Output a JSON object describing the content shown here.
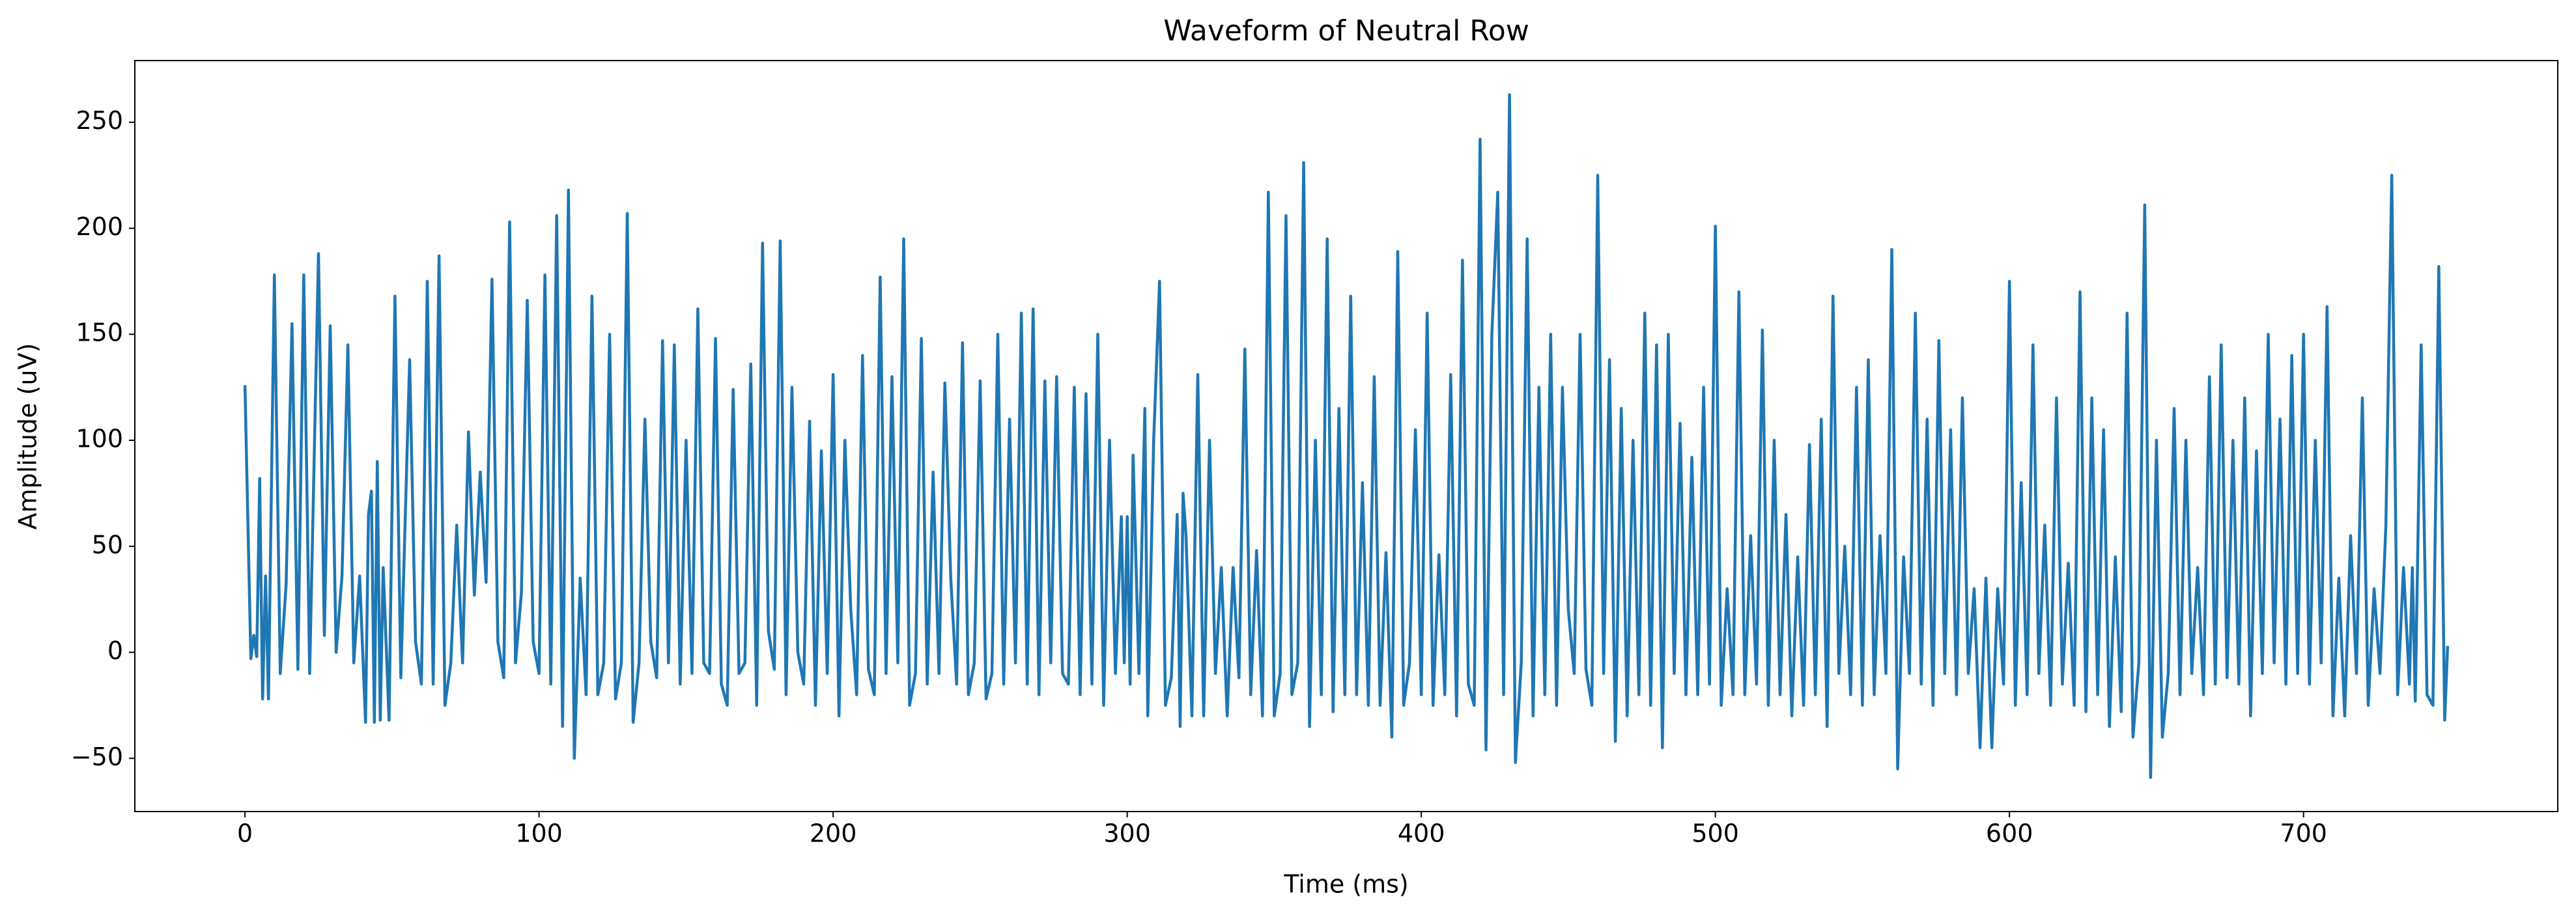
{
  "chart_data": {
    "type": "line",
    "title": "Waveform of Neutral Row",
    "xlabel": "Time (ms)",
    "ylabel": "Amplitude (uV)",
    "x": [
      0,
      2,
      3,
      4,
      5,
      6,
      7,
      8,
      10,
      12,
      14,
      16,
      18,
      20,
      22,
      25,
      27,
      29,
      31,
      33,
      35,
      37,
      39,
      41,
      42,
      43,
      44,
      45,
      46,
      47,
      49,
      51,
      53,
      56,
      58,
      60,
      62,
      64,
      66,
      68,
      70,
      72,
      74,
      76,
      78,
      80,
      82,
      84,
      86,
      88,
      90,
      92,
      94,
      96,
      98,
      100,
      102,
      104,
      106,
      108,
      110,
      112,
      114,
      116,
      118,
      120,
      122,
      124,
      126,
      128,
      130,
      132,
      134,
      136,
      138,
      140,
      142,
      144,
      146,
      148,
      150,
      152,
      154,
      156,
      158,
      160,
      162,
      164,
      166,
      168,
      170,
      172,
      174,
      176,
      178,
      180,
      182,
      184,
      186,
      188,
      190,
      192,
      194,
      196,
      198,
      200,
      202,
      204,
      206,
      208,
      210,
      212,
      214,
      216,
      218,
      220,
      222,
      224,
      226,
      228,
      230,
      232,
      234,
      236,
      238,
      240,
      242,
      244,
      246,
      248,
      250,
      252,
      254,
      256,
      258,
      260,
      262,
      264,
      266,
      268,
      270,
      272,
      274,
      276,
      278,
      280,
      282,
      284,
      286,
      288,
      290,
      292,
      294,
      296,
      298,
      299,
      300,
      301,
      302,
      304,
      306,
      307,
      309,
      311,
      313,
      315,
      317,
      318,
      319,
      320,
      322,
      324,
      326,
      328,
      330,
      332,
      334,
      336,
      338,
      340,
      342,
      344,
      346,
      348,
      350,
      352,
      354,
      356,
      358,
      360,
      362,
      364,
      366,
      368,
      370,
      372,
      374,
      376,
      378,
      380,
      382,
      384,
      386,
      388,
      390,
      392,
      394,
      396,
      398,
      400,
      402,
      404,
      406,
      408,
      410,
      412,
      414,
      416,
      418,
      420,
      422,
      424,
      426,
      428,
      430,
      432,
      434,
      436,
      438,
      440,
      442,
      444,
      446,
      448,
      450,
      452,
      454,
      456,
      458,
      460,
      462,
      464,
      466,
      468,
      470,
      472,
      474,
      476,
      478,
      480,
      482,
      484,
      486,
      488,
      490,
      492,
      494,
      496,
      498,
      500,
      502,
      504,
      506,
      508,
      510,
      512,
      514,
      516,
      518,
      520,
      522,
      524,
      526,
      528,
      530,
      532,
      534,
      536,
      538,
      540,
      542,
      544,
      546,
      548,
      550,
      552,
      554,
      556,
      558,
      560,
      562,
      564,
      566,
      568,
      570,
      572,
      574,
      576,
      578,
      580,
      582,
      584,
      586,
      588,
      590,
      592,
      594,
      596,
      598,
      600,
      602,
      604,
      606,
      608,
      610,
      612,
      614,
      616,
      618,
      620,
      622,
      624,
      626,
      628,
      630,
      632,
      634,
      636,
      638,
      640,
      642,
      644,
      646,
      648,
      650,
      652,
      654,
      656,
      658,
      660,
      662,
      664,
      666,
      668,
      670,
      672,
      674,
      676,
      678,
      680,
      682,
      684,
      686,
      688,
      690,
      692,
      694,
      696,
      698,
      700,
      702,
      704,
      706,
      708,
      710,
      712,
      714,
      716,
      718,
      720,
      722,
      724,
      726,
      728,
      730,
      732,
      734,
      736,
      737,
      738,
      740,
      742,
      744,
      746,
      748,
      749
    ],
    "series": [
      {
        "name": "Neutral Row",
        "color": "#1f77b4",
        "values": [
          126,
          -3,
          8,
          -2,
          82,
          -22,
          36,
          -22,
          178,
          -10,
          32,
          155,
          -8,
          178,
          -10,
          188,
          8,
          154,
          0,
          36,
          145,
          -5,
          36,
          -33,
          65,
          76,
          -33,
          90,
          -32,
          40,
          -32,
          168,
          -12,
          138,
          5,
          -15,
          175,
          -15,
          187,
          -25,
          -5,
          60,
          -5,
          104,
          27,
          85,
          33,
          176,
          5,
          -12,
          203,
          -5,
          28,
          166,
          5,
          -10,
          178,
          -15,
          206,
          -35,
          218,
          -50,
          35,
          -20,
          168,
          -20,
          -5,
          150,
          -22,
          -5,
          207,
          -33,
          -5,
          110,
          5,
          -12,
          147,
          -5,
          145,
          -15,
          100,
          -10,
          162,
          -5,
          -10,
          148,
          -15,
          -25,
          124,
          -10,
          -5,
          136,
          -25,
          193,
          10,
          -8,
          194,
          -20,
          125,
          0,
          -15,
          109,
          -25,
          95,
          -10,
          131,
          -30,
          100,
          20,
          -20,
          140,
          -8,
          -20,
          177,
          -10,
          130,
          -5,
          195,
          -25,
          -10,
          148,
          -15,
          85,
          -10,
          127,
          35,
          -15,
          146,
          -20,
          -5,
          128,
          -22,
          -10,
          150,
          -15,
          110,
          -5,
          160,
          -15,
          162,
          -20,
          128,
          -5,
          130,
          -10,
          -15,
          125,
          -20,
          122,
          -15,
          150,
          -25,
          100,
          -10,
          64,
          -5,
          64,
          -15,
          93,
          -10,
          115,
          -30,
          100,
          175,
          -25,
          -12,
          65,
          -35,
          75,
          55,
          -30,
          131,
          -30,
          100,
          -10,
          40,
          -30,
          40,
          -12,
          143,
          -20,
          48,
          -30,
          217,
          -30,
          -10,
          206,
          -20,
          -5,
          231,
          -35,
          100,
          -20,
          195,
          -28,
          115,
          -20,
          168,
          -20,
          80,
          -25,
          130,
          -25,
          47,
          -40,
          189,
          -25,
          -5,
          105,
          -20,
          160,
          -25,
          46,
          -20,
          131,
          -30,
          185,
          -15,
          -25,
          242,
          -46,
          150,
          217,
          -20,
          263,
          -52,
          -5,
          195,
          -30,
          125,
          -20,
          150,
          -25,
          125,
          20,
          -10,
          150,
          -8,
          -25,
          225,
          -10,
          138,
          -42,
          115,
          -30,
          100,
          -20,
          160,
          -25,
          145,
          -45,
          150,
          -10,
          108,
          -20,
          92,
          -20,
          125,
          -15,
          201,
          -25,
          30,
          -20,
          170,
          -20,
          55,
          -15,
          152,
          -25,
          100,
          -20,
          65,
          -30,
          45,
          -25,
          98,
          -20,
          110,
          -35,
          168,
          -10,
          50,
          -20,
          125,
          -25,
          138,
          -20,
          55,
          -10,
          190,
          -55,
          45,
          -10,
          160,
          -15,
          110,
          -25,
          147,
          -10,
          105,
          -20,
          120,
          -10,
          30,
          -45,
          35,
          -45,
          30,
          -15,
          175,
          -25,
          80,
          -20,
          145,
          -10,
          60,
          -25,
          120,
          -15,
          42,
          -25,
          170,
          -28,
          120,
          -20,
          105,
          -35,
          45,
          -28,
          160,
          -40,
          -5,
          211,
          -59,
          100,
          -40,
          -10,
          115,
          -20,
          100,
          -10,
          40,
          -20,
          130,
          -15,
          145,
          -12,
          100,
          -15,
          120,
          -30,
          95,
          -10,
          150,
          -5,
          110,
          -15,
          140,
          -10,
          150,
          -15,
          100,
          -5,
          163,
          -30,
          35,
          -30,
          55,
          -10,
          120,
          -25,
          30,
          -10,
          60,
          225,
          -20,
          40,
          -15,
          40,
          -23,
          145,
          -20,
          -25,
          182,
          -32,
          3
        ]
      }
    ],
    "xlim": [
      -37.45,
      786.45
    ],
    "ylim": [
      -75.1,
      279.1
    ],
    "xticks": [
      0,
      100,
      200,
      300,
      400,
      500,
      600,
      700
    ],
    "yticks": [
      {
        "value": -50,
        "label": "−50"
      },
      0,
      50,
      100,
      150,
      200,
      250
    ],
    "grid": false
  }
}
